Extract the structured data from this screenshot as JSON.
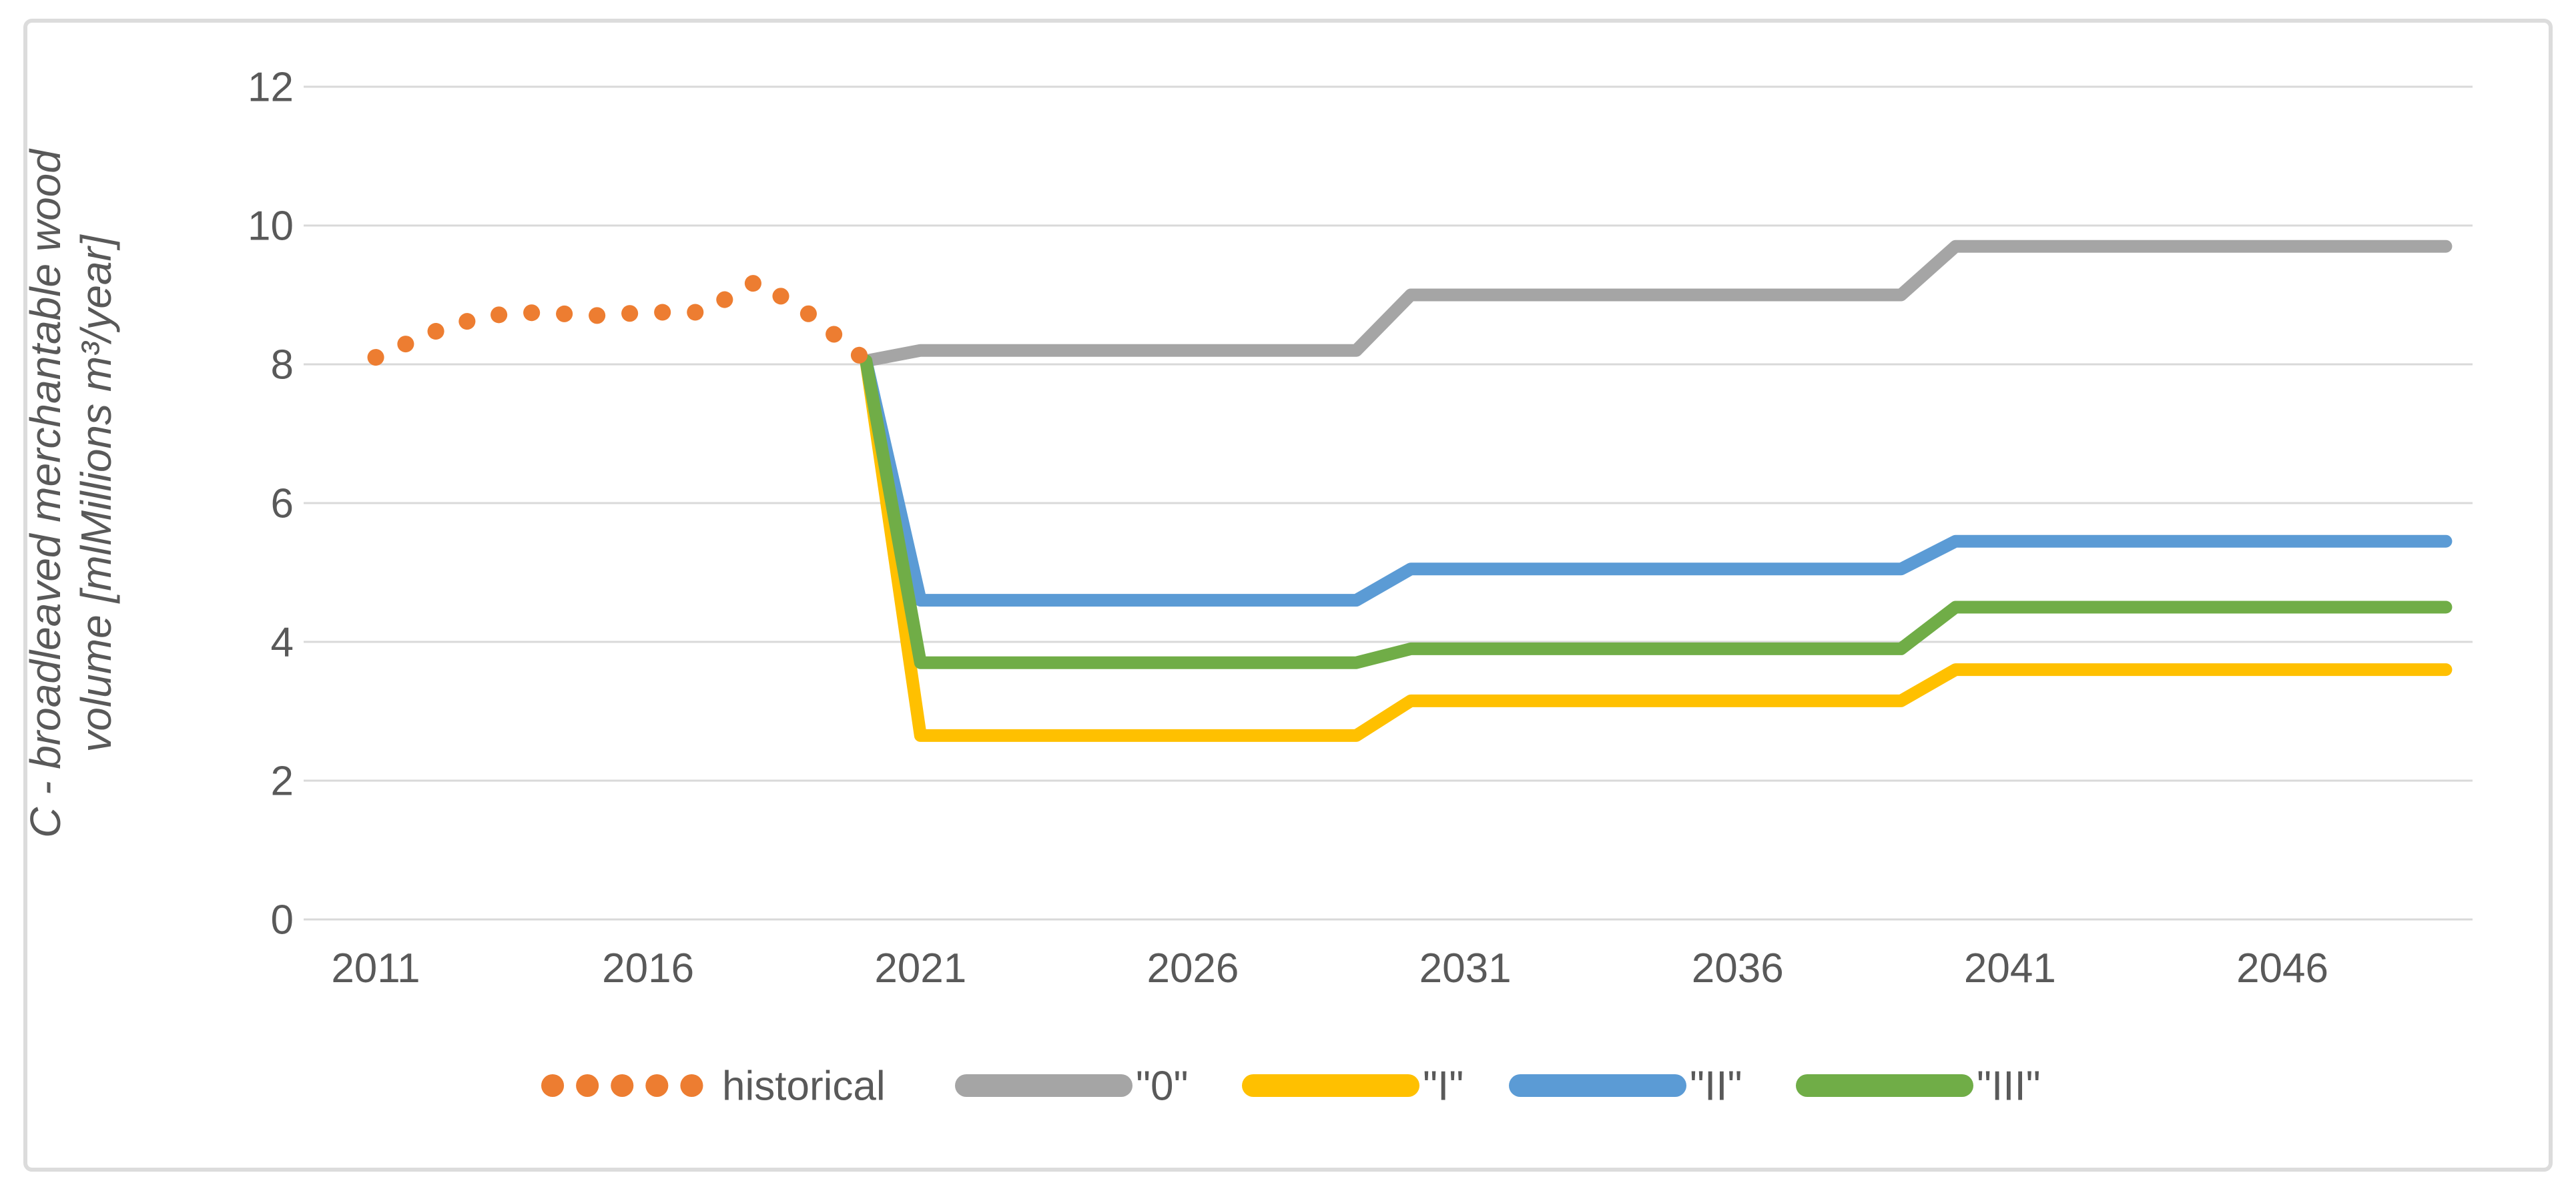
{
  "figure": {
    "background": "#FFFFFF",
    "border_color": "#DCDCDC"
  },
  "chart_data": {
    "type": "line",
    "title": "",
    "xlabel": "",
    "ylabel": "C - broadleaved merchantable wood volume [mlMillions m³/year]",
    "ylabel_lines": [
      "C - broadleaved merchantable wood",
      "volume [mlMillions m³/year]"
    ],
    "xlim": [
      2011,
      2049
    ],
    "ylim": [
      0,
      12
    ],
    "yticks": [
      "0",
      "2",
      "4",
      "6",
      "8",
      "10",
      "12"
    ],
    "ytick_values": [
      0,
      2,
      4,
      6,
      8,
      10,
      12
    ],
    "xticks": [
      "2011",
      "2016",
      "2021",
      "2026",
      "2031",
      "2036",
      "2041",
      "2046"
    ],
    "xtick_values": [
      2011,
      2016,
      2021,
      2026,
      2031,
      2036,
      2041,
      2046
    ],
    "grid": true,
    "grid_color": "#D9D9D9",
    "axis_text_color": "#595959",
    "legend_position": "bottom",
    "series": [
      {
        "name": "historical",
        "color": "#ED7D31",
        "line_style": "dotted",
        "x": [
          2011,
          2012,
          2013,
          2014,
          2015,
          2016,
          2017,
          2018,
          2019,
          2020
        ],
        "values": [
          8.1,
          8.45,
          8.7,
          8.75,
          8.7,
          8.75,
          8.75,
          9.2,
          8.7,
          8.05
        ]
      },
      {
        "name": "\"0\"",
        "color": "#A5A5A5",
        "line_style": "solid",
        "x": [
          2020,
          2021,
          2029,
          2030,
          2039,
          2040,
          2049
        ],
        "values": [
          8.05,
          8.2,
          8.2,
          9.0,
          9.0,
          9.7,
          9.7
        ]
      },
      {
        "name": "\"I\"",
        "color": "#FFC000",
        "line_style": "solid",
        "x": [
          2020,
          2021,
          2029,
          2030,
          2039,
          2040,
          2049
        ],
        "values": [
          8.05,
          2.65,
          2.65,
          3.15,
          3.15,
          3.6,
          3.6
        ]
      },
      {
        "name": "\"II\"",
        "color": "#5B9BD5",
        "line_style": "solid",
        "x": [
          2020,
          2021,
          2029,
          2030,
          2039,
          2040,
          2049
        ],
        "values": [
          8.05,
          4.6,
          4.6,
          5.05,
          5.05,
          5.45,
          5.45
        ]
      },
      {
        "name": "\"III\"",
        "color": "#70AD47",
        "line_style": "solid",
        "x": [
          2020,
          2021,
          2029,
          2030,
          2039,
          2040,
          2049
        ],
        "values": [
          8.05,
          3.7,
          3.7,
          3.9,
          3.9,
          4.5,
          4.5
        ]
      }
    ]
  }
}
